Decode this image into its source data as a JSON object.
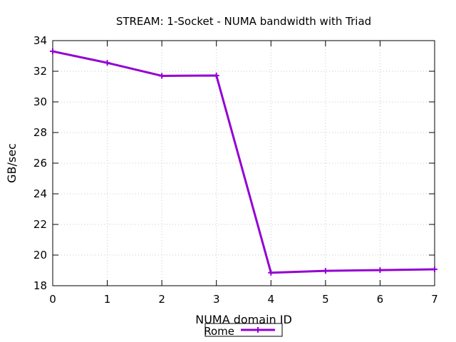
{
  "chart_data": {
    "type": "line",
    "title": "STREAM: 1-Socket - NUMA bandwidth with Triad",
    "xlabel": "NUMA domain ID",
    "ylabel": "GB/sec",
    "x": [
      0,
      1,
      2,
      3,
      4,
      5,
      6,
      7
    ],
    "xlim": [
      0,
      7
    ],
    "ylim": [
      18,
      34
    ],
    "xticks": [
      "0",
      "1",
      "2",
      "3",
      "4",
      "5",
      "6",
      "7"
    ],
    "yticks": [
      "18",
      "20",
      "22",
      "24",
      "26",
      "28",
      "30",
      "32",
      "34"
    ],
    "grid": true,
    "legend_position": "bottom-center",
    "series": [
      {
        "name": "Rome",
        "color": "#9400d3",
        "values": [
          33.3,
          32.55,
          31.7,
          31.72,
          18.85,
          18.97,
          19.02,
          19.07
        ]
      }
    ]
  }
}
